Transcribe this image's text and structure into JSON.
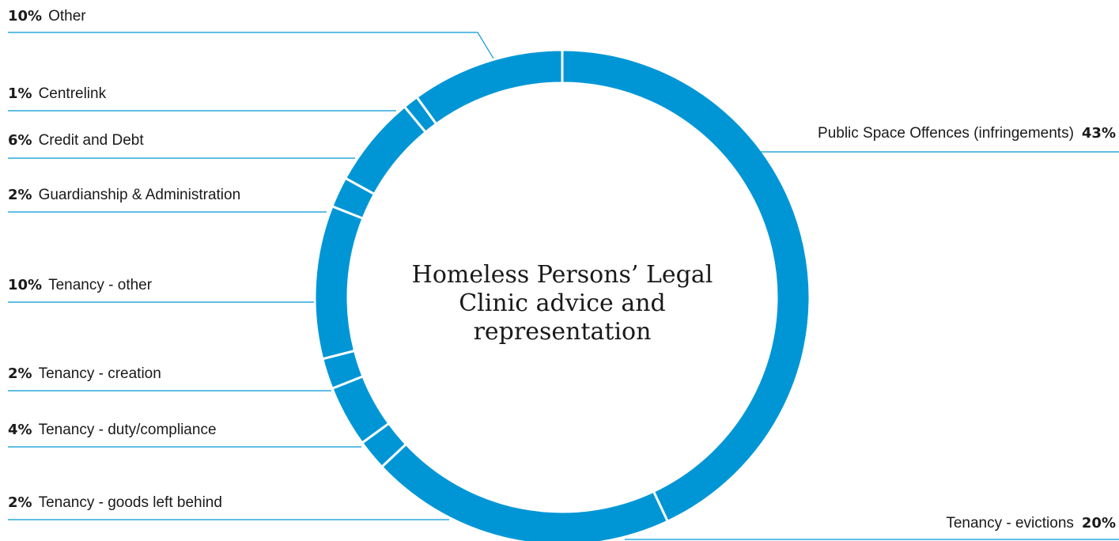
{
  "chart_data": {
    "type": "pie",
    "donut": true,
    "title": "Homeless Persons’ Legal Clinic advice and representation",
    "color": "#0096d6",
    "start_angle_deg": 0,
    "direction": "clockwise",
    "slices": [
      {
        "label": "Public Space Offences (infringements)",
        "value": 43,
        "pct_text": "43%",
        "side": "right"
      },
      {
        "label": "Tenancy - evictions",
        "value": 20,
        "pct_text": "20%",
        "side": "right"
      },
      {
        "label": "Tenancy - goods left behind",
        "value": 2,
        "pct_text": "2%",
        "side": "left"
      },
      {
        "label": "Tenancy - duty/compliance",
        "value": 4,
        "pct_text": "4%",
        "side": "left"
      },
      {
        "label": "Tenancy - creation",
        "value": 2,
        "pct_text": "2%",
        "side": "left"
      },
      {
        "label": "Tenancy - other",
        "value": 10,
        "pct_text": "10%",
        "side": "left"
      },
      {
        "label": "Guardianship & Administration",
        "value": 2,
        "pct_text": "2%",
        "side": "left"
      },
      {
        "label": "Credit and Debt",
        "value": 6,
        "pct_text": "6%",
        "side": "left"
      },
      {
        "label": "Centrelink",
        "value": 1,
        "pct_text": "1%",
        "side": "left"
      },
      {
        "label": "Other",
        "value": 10,
        "pct_text": "10%",
        "side": "left"
      }
    ]
  }
}
